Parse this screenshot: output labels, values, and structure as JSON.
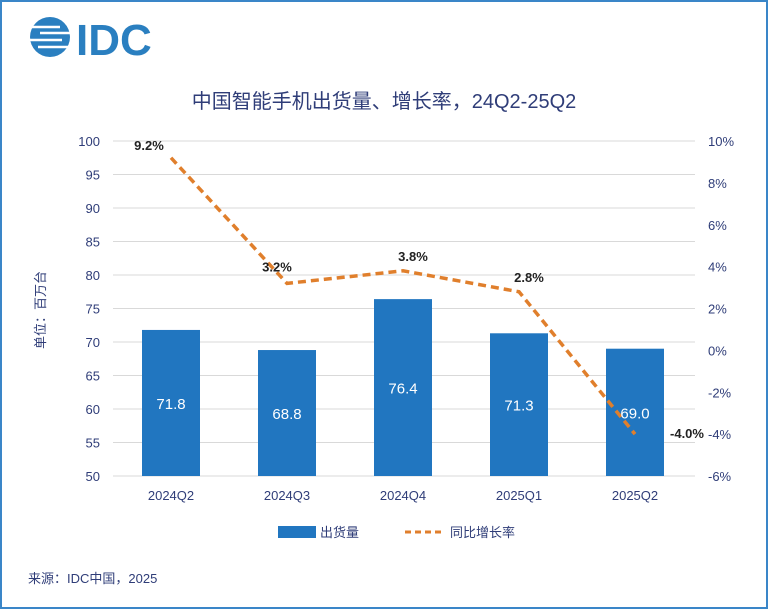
{
  "logo": "IDC",
  "source": "来源：IDC中国，2025",
  "colors": {
    "bar": "#2176c0",
    "line": "#e07f2c",
    "text": "#2f3d78",
    "grid": "#d9d9d9",
    "frame": "#3a86c8"
  },
  "chart_data": {
    "type": "bar+line",
    "title": "中国智能手机出货量、增长率，24Q2-25Q2",
    "ylabel": "单位：百万台",
    "categories": [
      "2024Q2",
      "2024Q3",
      "2024Q4",
      "2025Q1",
      "2025Q2"
    ],
    "ylim": [
      50,
      100
    ],
    "yticks": [
      "100",
      "95",
      "90",
      "85",
      "80",
      "75",
      "70",
      "65",
      "60",
      "55",
      "50"
    ],
    "y2lim": [
      -6,
      10
    ],
    "y2ticks": [
      "10%",
      "8%",
      "6%",
      "4%",
      "2%",
      "0%",
      "-2%",
      "-4%",
      "-6%"
    ],
    "grid": true,
    "legend_position": "bottom",
    "series": [
      {
        "name": "出货量",
        "type": "bar",
        "values": [
          71.8,
          68.8,
          76.4,
          71.3,
          69.0
        ],
        "labels": [
          "71.8",
          "68.8",
          "76.4",
          "71.3",
          "69.0"
        ]
      },
      {
        "name": "同比增长率",
        "type": "line",
        "axis": "right",
        "values": [
          9.2,
          3.2,
          3.8,
          2.8,
          -4.0
        ],
        "labels": [
          "9.2%",
          "3.2%",
          "3.8%",
          "2.8%",
          "-4.0%"
        ]
      }
    ]
  }
}
